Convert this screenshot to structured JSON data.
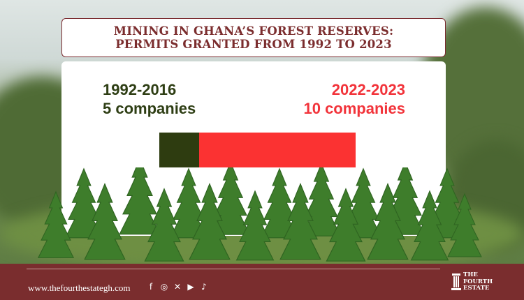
{
  "title": {
    "line1": "MINING IN GHANA’S FOREST RESERVES:",
    "line2": "PERMITS GRANTED FROM 1992 TO 2023"
  },
  "stats": {
    "left": {
      "period": "1992-2016",
      "count": "5 companies",
      "value": 5,
      "color": "#2e3e14"
    },
    "right": {
      "period": "2022-2023",
      "count": "10 companies",
      "value": 10,
      "color": "#f2333a"
    }
  },
  "footer": {
    "website": "www.thefourthestategh.com",
    "socials": [
      "facebook-icon",
      "instagram-icon",
      "x-icon",
      "youtube-icon",
      "tiktok-icon"
    ],
    "social_glyphs": [
      "f",
      "◎",
      "✕",
      "▶",
      "♪"
    ],
    "logo_line1": "THE",
    "logo_line2": "FOURTH",
    "logo_line3": "ESTATE"
  }
}
